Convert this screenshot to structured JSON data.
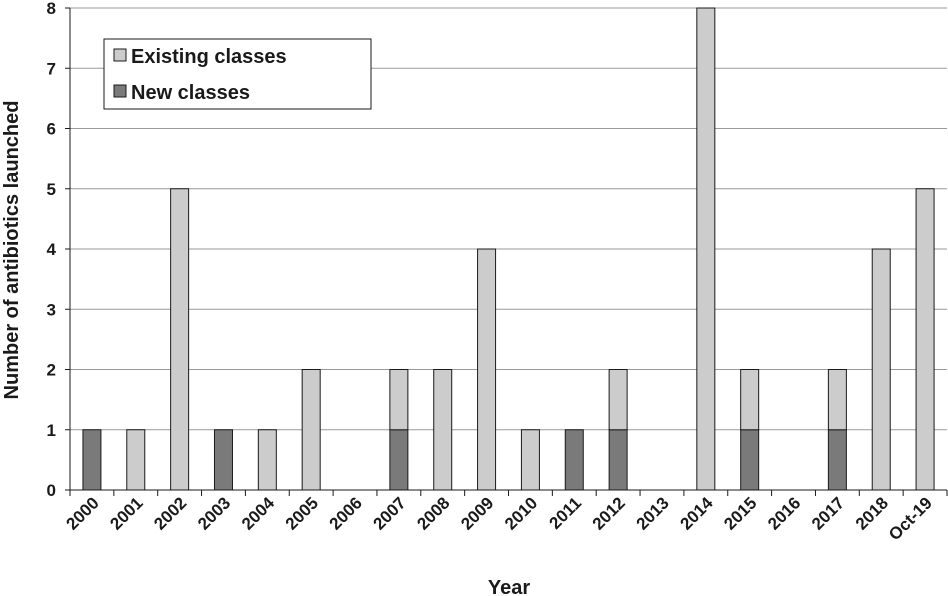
{
  "chart_data": {
    "type": "bar",
    "stacked": true,
    "categories": [
      "2000",
      "2001",
      "2002",
      "2003",
      "2004",
      "2005",
      "2006",
      "2007",
      "2008",
      "2009",
      "2010",
      "2011",
      "2012",
      "2013",
      "2014",
      "2015",
      "2016",
      "2017",
      "2018",
      "Oct-19"
    ],
    "series": [
      {
        "name": "New classes",
        "color": "#7a7a7a",
        "values": [
          1,
          0,
          0,
          1,
          0,
          0,
          0,
          1,
          0,
          0,
          0,
          1,
          1,
          0,
          0,
          1,
          0,
          1,
          0,
          0
        ]
      },
      {
        "name": "Existing classes",
        "color": "#cccccc",
        "values": [
          0,
          1,
          5,
          0,
          1,
          2,
          0,
          1,
          2,
          4,
          1,
          0,
          1,
          0,
          8,
          1,
          0,
          1,
          4,
          5
        ]
      }
    ],
    "xlabel": "Year",
    "ylabel": "Number of antibiotics launched",
    "ylim": [
      0,
      8
    ],
    "yticks": [
      "0",
      "1",
      "2",
      "3",
      "4",
      "5",
      "6",
      "7",
      "8"
    ],
    "grid": true,
    "legend_position": "top-left",
    "legend": [
      "Existing classes",
      "New classes"
    ]
  }
}
